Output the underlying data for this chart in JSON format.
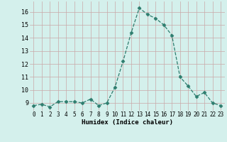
{
  "x": [
    0,
    1,
    2,
    3,
    4,
    5,
    6,
    7,
    8,
    9,
    10,
    11,
    12,
    13,
    14,
    15,
    16,
    17,
    18,
    19,
    20,
    21,
    22,
    23
  ],
  "y": [
    8.8,
    8.9,
    8.7,
    9.1,
    9.1,
    9.1,
    9.0,
    9.3,
    8.8,
    9.0,
    10.2,
    12.2,
    14.4,
    16.3,
    15.8,
    15.5,
    15.0,
    14.2,
    11.0,
    10.3,
    9.5,
    9.8,
    9.0,
    8.8
  ],
  "xlabel": "Humidex (Indice chaleur)",
  "xlim": [
    -0.5,
    23.5
  ],
  "ylim": [
    8.4,
    16.8
  ],
  "yticks": [
    9,
    10,
    11,
    12,
    13,
    14,
    15,
    16
  ],
  "line_color": "#2d7d6e",
  "marker": "D",
  "marker_size": 2.5,
  "bg_color": "#d4f0ec",
  "grid_color_v": "#c9a8a8",
  "grid_color_h": "#c9a8a8",
  "axes_bg": "#d4f0ec",
  "xlabel_fontsize": 6.5,
  "tick_fontsize": 5.5
}
